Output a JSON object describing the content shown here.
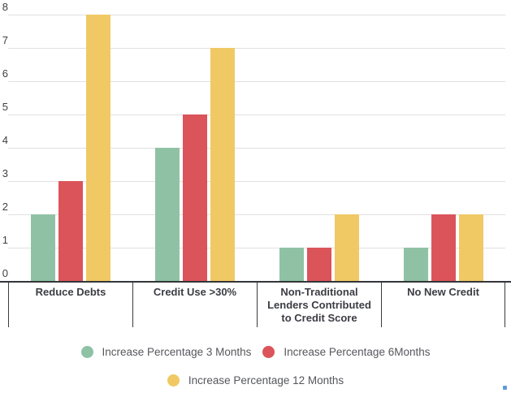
{
  "chart_data": {
    "type": "bar",
    "title": "",
    "xlabel": "",
    "ylabel": "",
    "ylim": [
      0,
      8
    ],
    "yticks": [
      0,
      1,
      2,
      3,
      4,
      5,
      6,
      7,
      8
    ],
    "grid": true,
    "legend_position": "bottom",
    "categories": [
      "Reduce Debts",
      "Credit Use >30%",
      "Non-Traditional Lenders Contributed to Credit Score",
      "No New Credit"
    ],
    "series": [
      {
        "name": "Increase Percentage 3 Months",
        "color": "#8FC2A4",
        "values": [
          2,
          4,
          1,
          1
        ]
      },
      {
        "name": "Increase Percentage 6Months",
        "color": "#DB545A",
        "values": [
          3,
          5,
          1,
          2
        ]
      },
      {
        "name": "Increase Percentage 12 Months",
        "color": "#F0C964",
        "values": [
          8,
          7,
          2,
          2
        ]
      }
    ],
    "legend_rows": [
      [
        0,
        1
      ],
      [
        2
      ]
    ]
  },
  "decorations": {
    "corner_dot_color": "#5C9BD9"
  }
}
